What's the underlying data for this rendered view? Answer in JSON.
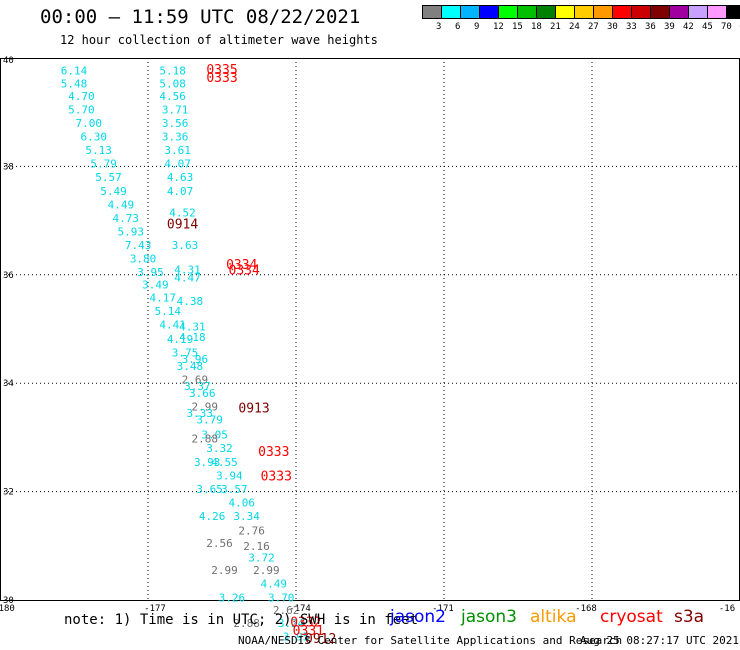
{
  "header": {
    "title": "00:00 – 11:59 UTC 08/22/2021",
    "subtitle": "12 hour collection of altimeter wave heights"
  },
  "color_scale": {
    "labels": [
      "3",
      "6",
      "9",
      "12",
      "15",
      "18",
      "21",
      "24",
      "27",
      "30",
      "33",
      "36",
      "39",
      "42",
      "45",
      "70",
      "(ft)"
    ],
    "colors": [
      "#808080",
      "#00ffff",
      "#00b4ff",
      "#0000ff",
      "#00ff00",
      "#00c000",
      "#008000",
      "#ffff00",
      "#ffcc00",
      "#ff9900",
      "#ff0000",
      "#cc0000",
      "#800000",
      "#a000a0",
      "#c8a0ff",
      "#ff99ff",
      "#000000"
    ]
  },
  "axes": {
    "x_ticks": [
      "-180",
      "-177",
      "-174",
      "-171",
      "-168",
      "-16"
    ],
    "y_ticks": [
      "40",
      "38",
      "36",
      "34",
      "32",
      "30"
    ],
    "x_range": [
      -180,
      -165
    ],
    "y_range": [
      30,
      40
    ]
  },
  "colors": {
    "cyan": "#00d8e8",
    "gray": "#707070",
    "red": "#ff0000",
    "dark_red": "#800000",
    "jason2": "#0000ff",
    "jason3": "#009000",
    "altika": "#ff9900",
    "cryosat": "#ff0000",
    "s3a": "#800000"
  },
  "observations": [
    {
      "lon": -178.5,
      "lat": 39.77,
      "v": "6.14",
      "c": "cyan"
    },
    {
      "lon": -178.5,
      "lat": 39.53,
      "v": "5.48",
      "c": "cyan"
    },
    {
      "lon": -178.35,
      "lat": 39.3,
      "v": "4.70",
      "c": "cyan"
    },
    {
      "lon": -178.35,
      "lat": 39.05,
      "v": "5.70",
      "c": "cyan"
    },
    {
      "lon": -178.2,
      "lat": 38.8,
      "v": "7.00",
      "c": "cyan"
    },
    {
      "lon": -178.1,
      "lat": 38.55,
      "v": "6.30",
      "c": "cyan"
    },
    {
      "lon": -178.0,
      "lat": 38.3,
      "v": "5.13",
      "c": "cyan"
    },
    {
      "lon": -177.9,
      "lat": 38.05,
      "v": "5.79",
      "c": "cyan"
    },
    {
      "lon": -177.8,
      "lat": 37.8,
      "v": "5.57",
      "c": "cyan"
    },
    {
      "lon": -177.7,
      "lat": 37.55,
      "v": "5.49",
      "c": "cyan"
    },
    {
      "lon": -177.55,
      "lat": 37.3,
      "v": "4.49",
      "c": "cyan"
    },
    {
      "lon": -177.45,
      "lat": 37.05,
      "v": "4.73",
      "c": "cyan"
    },
    {
      "lon": -177.35,
      "lat": 36.8,
      "v": "5.93",
      "c": "cyan"
    },
    {
      "lon": -177.2,
      "lat": 36.55,
      "v": "7.43",
      "c": "cyan"
    },
    {
      "lon": -177.1,
      "lat": 36.3,
      "v": "3.80",
      "c": "cyan"
    },
    {
      "lon": -176.95,
      "lat": 36.05,
      "v": "3.95",
      "c": "cyan"
    },
    {
      "lon": -176.85,
      "lat": 35.82,
      "v": "3.49",
      "c": "cyan"
    },
    {
      "lon": -176.7,
      "lat": 35.58,
      "v": "4.17",
      "c": "cyan"
    },
    {
      "lon": -176.6,
      "lat": 35.33,
      "v": "5.14",
      "c": "cyan"
    },
    {
      "lon": -176.5,
      "lat": 35.08,
      "v": "4.41",
      "c": "cyan"
    },
    {
      "lon": -176.35,
      "lat": 34.82,
      "v": "4.19",
      "c": "cyan"
    },
    {
      "lon": -176.25,
      "lat": 34.57,
      "v": "3.75",
      "c": "cyan"
    },
    {
      "lon": -176.15,
      "lat": 34.32,
      "v": "3.48",
      "c": "cyan"
    },
    {
      "lon": -176.05,
      "lat": 34.07,
      "v": "2.69",
      "c": "gray"
    },
    {
      "lon": -175.9,
      "lat": 33.82,
      "v": "3.66",
      "c": "cyan"
    },
    {
      "lon": -175.85,
      "lat": 33.57,
      "v": "2.99",
      "c": "gray"
    },
    {
      "lon": -175.75,
      "lat": 33.33,
      "v": "3.79",
      "c": "cyan"
    },
    {
      "lon": -175.65,
      "lat": 33.05,
      "v": "3.05",
      "c": "cyan"
    },
    {
      "lon": -175.55,
      "lat": 32.8,
      "v": "3.32",
      "c": "cyan"
    },
    {
      "lon": -175.45,
      "lat": 32.55,
      "v": "4.55",
      "c": "cyan"
    },
    {
      "lon": -175.35,
      "lat": 32.3,
      "v": "3.94",
      "c": "cyan"
    },
    {
      "lon": -175.25,
      "lat": 32.05,
      "v": "3.57",
      "c": "cyan"
    },
    {
      "lon": -175.1,
      "lat": 31.8,
      "v": "4.06",
      "c": "cyan"
    },
    {
      "lon": -175.0,
      "lat": 31.55,
      "v": "3.34",
      "c": "cyan"
    },
    {
      "lon": -174.9,
      "lat": 31.28,
      "v": "2.76",
      "c": "gray"
    },
    {
      "lon": -174.8,
      "lat": 31.0,
      "v": "2.16",
      "c": "gray"
    },
    {
      "lon": -174.7,
      "lat": 30.78,
      "v": "3.72",
      "c": "cyan"
    },
    {
      "lon": -174.6,
      "lat": 30.55,
      "v": "2.99",
      "c": "gray"
    },
    {
      "lon": -174.45,
      "lat": 30.3,
      "v": "4.49",
      "c": "cyan"
    },
    {
      "lon": -174.3,
      "lat": 30.05,
      "v": "3.70",
      "c": "cyan"
    },
    {
      "lon": -174.2,
      "lat": 29.82,
      "v": "2.62",
      "c": "gray"
    },
    {
      "lon": -174.1,
      "lat": 29.58,
      "v": "3.24",
      "c": "cyan"
    },
    {
      "lon": -174.0,
      "lat": 29.33,
      "v": "3.95",
      "c": "cyan"
    },
    {
      "lon": -176.5,
      "lat": 39.77,
      "v": "5.18",
      "c": "cyan"
    },
    {
      "lon": -176.5,
      "lat": 39.53,
      "v": "5.08",
      "c": "cyan"
    },
    {
      "lon": -176.5,
      "lat": 39.3,
      "v": "4.56",
      "c": "cyan"
    },
    {
      "lon": -176.45,
      "lat": 39.05,
      "v": "3.71",
      "c": "cyan"
    },
    {
      "lon": -176.45,
      "lat": 38.8,
      "v": "3.56",
      "c": "cyan"
    },
    {
      "lon": -176.45,
      "lat": 38.55,
      "v": "3.36",
      "c": "cyan"
    },
    {
      "lon": -176.4,
      "lat": 38.3,
      "v": "3.61",
      "c": "cyan"
    },
    {
      "lon": -176.4,
      "lat": 38.05,
      "v": "4.07",
      "c": "cyan"
    },
    {
      "lon": -176.35,
      "lat": 37.8,
      "v": "4.63",
      "c": "cyan"
    },
    {
      "lon": -176.35,
      "lat": 37.55,
      "v": "4.07",
      "c": "cyan"
    },
    {
      "lon": -176.3,
      "lat": 37.15,
      "v": "4.52",
      "c": "cyan"
    },
    {
      "lon": -176.25,
      "lat": 36.55,
      "v": "3.63",
      "c": "cyan"
    },
    {
      "lon": -176.2,
      "lat": 36.1,
      "v": "4.31",
      "c": "cyan"
    },
    {
      "lon": -176.2,
      "lat": 35.95,
      "v": "4.47",
      "c": "cyan"
    },
    {
      "lon": -176.15,
      "lat": 35.52,
      "v": "4.38",
      "c": "cyan"
    },
    {
      "lon": -176.1,
      "lat": 35.05,
      "v": "4.31",
      "c": "cyan"
    },
    {
      "lon": -176.1,
      "lat": 34.85,
      "v": "4.18",
      "c": "cyan"
    },
    {
      "lon": -176.05,
      "lat": 34.45,
      "v": "3.96",
      "c": "cyan"
    },
    {
      "lon": -176.0,
      "lat": 33.95,
      "v": "3.37",
      "c": "cyan"
    },
    {
      "lon": -175.95,
      "lat": 33.45,
      "v": "3.33",
      "c": "cyan"
    },
    {
      "lon": -175.85,
      "lat": 32.98,
      "v": "2.88",
      "c": "gray"
    },
    {
      "lon": -175.8,
      "lat": 32.55,
      "v": "3.93",
      "c": "cyan"
    },
    {
      "lon": -175.75,
      "lat": 32.05,
      "v": "3.65",
      "c": "cyan"
    },
    {
      "lon": -175.7,
      "lat": 31.55,
      "v": "4.26",
      "c": "cyan"
    },
    {
      "lon": -175.55,
      "lat": 31.05,
      "v": "2.56",
      "c": "gray"
    },
    {
      "lon": -175.45,
      "lat": 30.55,
      "v": "2.99",
      "c": "gray"
    },
    {
      "lon": -175.3,
      "lat": 30.05,
      "v": "3.26",
      "c": "cyan"
    },
    {
      "lon": -175.0,
      "lat": 29.58,
      "v": "2.88",
      "c": "gray"
    }
  ],
  "pass_labels": [
    {
      "lon": -175.5,
      "lat": 39.8,
      "v": "0335",
      "c": "red"
    },
    {
      "lon": -175.5,
      "lat": 39.65,
      "v": "0333",
      "c": "red"
    },
    {
      "lon": -176.3,
      "lat": 36.95,
      "v": "0914",
      "c": "dark_red"
    },
    {
      "lon": -175.1,
      "lat": 36.2,
      "v": "0334",
      "c": "red"
    },
    {
      "lon": -175.05,
      "lat": 36.1,
      "v": "0334",
      "c": "red"
    },
    {
      "lon": -174.85,
      "lat": 33.55,
      "v": "0913",
      "c": "dark_red"
    },
    {
      "lon": -174.45,
      "lat": 32.75,
      "v": "0333",
      "c": "red"
    },
    {
      "lon": -174.4,
      "lat": 32.3,
      "v": "0333",
      "c": "red"
    },
    {
      "lon": -173.8,
      "lat": 29.6,
      "v": "0332",
      "c": "red"
    },
    {
      "lon": -173.75,
      "lat": 29.45,
      "v": "0331",
      "c": "red"
    },
    {
      "lon": -173.5,
      "lat": 29.3,
      "v": "0912",
      "c": "dark_red"
    }
  ],
  "footer": {
    "note": "note: 1) Time is in UTC; 2) SWH is in feet",
    "credit": "NOAA/NESDIS Center for Satellite Applications and Research",
    "timestamp": "Aug 25 08:27:17 UTC 2021"
  },
  "satellites": [
    {
      "name": "jason2",
      "color": "jason2"
    },
    {
      "name": "jason3",
      "color": "jason3"
    },
    {
      "name": "altika",
      "color": "altika"
    },
    {
      "name": "cryosat",
      "color": "cryosat"
    },
    {
      "name": "s3a",
      "color": "s3a"
    }
  ]
}
